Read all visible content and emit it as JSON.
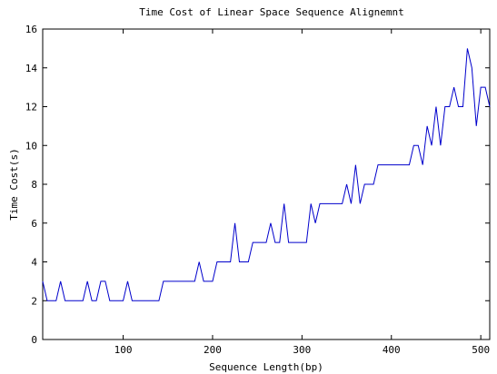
{
  "chart_data": {
    "type": "line",
    "title": "Time Cost of Linear Space Sequence Alignemnt",
    "xlabel": "Sequence Length(bp)",
    "ylabel": "Time Cost(s)",
    "xlim": [
      10,
      510
    ],
    "ylim": [
      0,
      16
    ],
    "xticks": [
      100,
      200,
      300,
      400,
      500
    ],
    "yticks": [
      0,
      2,
      4,
      6,
      8,
      10,
      12,
      14,
      16
    ],
    "grid": false,
    "line_color": "#0000cc",
    "series": [
      {
        "x": [
          10,
          15,
          20,
          25,
          30,
          35,
          40,
          45,
          50,
          55,
          60,
          65,
          70,
          75,
          80,
          85,
          90,
          95,
          100,
          105,
          110,
          115,
          120,
          125,
          130,
          135,
          140,
          145,
          150,
          155,
          160,
          165,
          170,
          175,
          180,
          185,
          190,
          195,
          200,
          205,
          210,
          215,
          220,
          225,
          230,
          235,
          240,
          245,
          250,
          255,
          260,
          265,
          270,
          275,
          280,
          285,
          290,
          295,
          300,
          305,
          310,
          315,
          320,
          325,
          330,
          335,
          340,
          345,
          350,
          355,
          360,
          365,
          370,
          375,
          380,
          385,
          390,
          395,
          400,
          405,
          410,
          415,
          420,
          425,
          430,
          435,
          440,
          445,
          450,
          455,
          460,
          465,
          470,
          475,
          480,
          485,
          490,
          495,
          500,
          505,
          510
        ],
        "values": [
          3,
          2,
          2,
          2,
          3,
          2,
          2,
          2,
          2,
          2,
          3,
          2,
          2,
          3,
          3,
          2,
          2,
          2,
          2,
          3,
          2,
          2,
          2,
          2,
          2,
          2,
          2,
          3,
          3,
          3,
          3,
          3,
          3,
          3,
          3,
          4,
          3,
          3,
          3,
          4,
          4,
          4,
          4,
          6,
          4,
          4,
          4,
          5,
          5,
          5,
          5,
          6,
          5,
          5,
          7,
          5,
          5,
          5,
          5,
          5,
          7,
          6,
          7,
          7,
          7,
          7,
          7,
          7,
          8,
          7,
          9,
          7,
          8,
          8,
          8,
          9,
          9,
          9,
          9,
          9,
          9,
          9,
          9,
          10,
          10,
          9,
          11,
          10,
          12,
          10,
          12,
          12,
          13,
          12,
          12,
          15,
          14,
          11,
          13,
          13,
          12
        ]
      }
    ]
  }
}
